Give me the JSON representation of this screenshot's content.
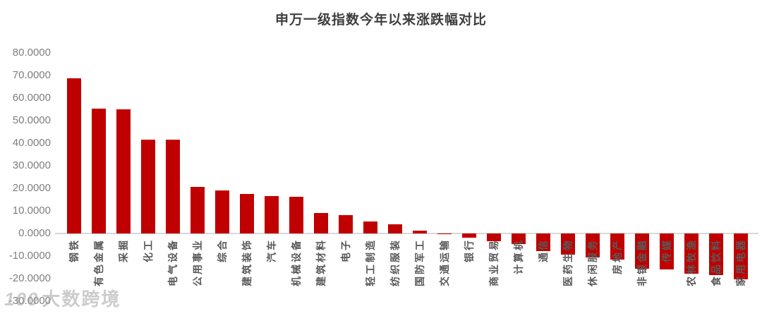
{
  "title": "申万一级指数今年以来涨跌幅对比",
  "watermark": {
    "logo": "100",
    "text": "大数跨境"
  },
  "colors": {
    "bar": "#c00000",
    "axis_line": "#d9d9d9",
    "title_text": "#3f3f3f",
    "tick_text": "#7f7f7f",
    "category_text": "#595959"
  },
  "chart_data": {
    "type": "bar",
    "title": "申万一级指数今年以来涨跌幅对比",
    "categories": [
      "钢铁",
      "有色金属",
      "采掘",
      "化工",
      "电气设备",
      "公用事业",
      "综合",
      "建筑装饰",
      "汽车",
      "机械设备",
      "建筑材料",
      "电子",
      "轻工制造",
      "纺织服装",
      "国防军工",
      "交通运输",
      "银行",
      "商业贸易",
      "计算机",
      "通信",
      "医药生物",
      "休闲服务",
      "房地产",
      "非银金融",
      "传媒",
      "农林牧渔",
      "食品饮料",
      "家用电器"
    ],
    "values": [
      68.9,
      55.4,
      54.9,
      41.7,
      41.5,
      20.6,
      19.0,
      17.5,
      16.5,
      16.4,
      9.0,
      8.2,
      5.3,
      4.1,
      1.2,
      -0.2,
      -2.0,
      -3.5,
      -4.6,
      -7.8,
      -9.4,
      -10.5,
      -11.6,
      -15.5,
      -16.0,
      -17.7,
      -18.5,
      -20.3
    ],
    "xlabel": "",
    "ylabel": "",
    "ylim": [
      -30,
      80
    ],
    "ytick_labels": [
      "80.0000",
      "70.0000",
      "60.0000",
      "50.0000",
      "40.0000",
      "30.0000",
      "20.0000",
      "10.0000",
      "0.0000",
      "-10.0000",
      "-20.0000",
      "-30.0000"
    ],
    "grid": false,
    "legend": false,
    "bar_color": "#c00000",
    "category_label_rotation_deg": -90
  }
}
